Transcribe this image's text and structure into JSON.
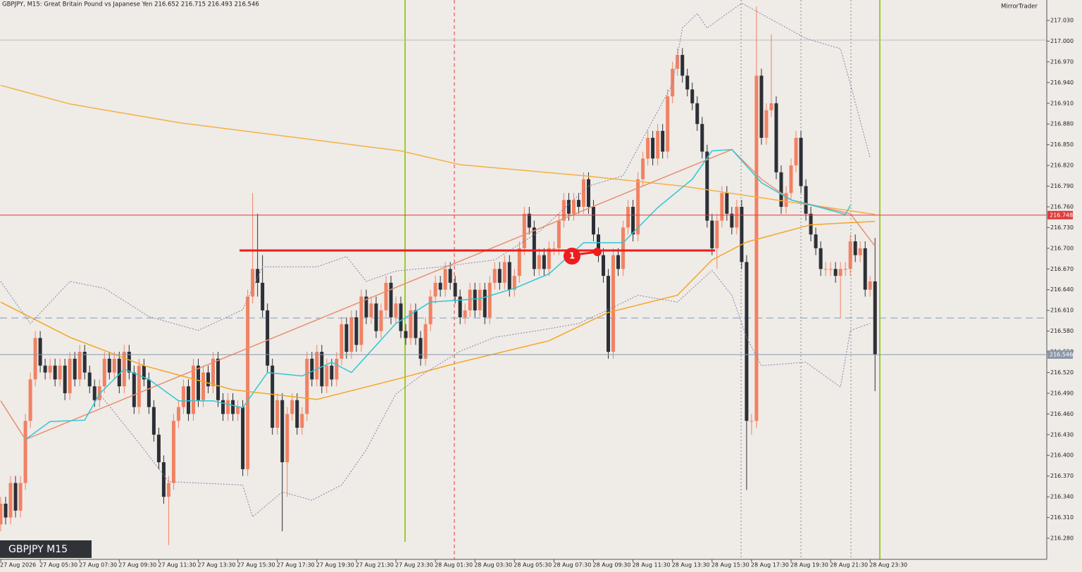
{
  "chart_data": {
    "type": "candlestick",
    "title": "GBPJPY, M15:  Great Britain Pound vs Japanese Yen  216.652 216.715 216.493 216.546",
    "brand": "MirrorTrader",
    "symbol_label": "GBPJPY M15",
    "bull_color": "#f08263",
    "bear_color": "#2b2f36",
    "ylim": [
      216.2494,
      217.0596
    ],
    "yticks": [
      {
        "value": 217.03,
        "label": "217.030"
      },
      {
        "value": 217.0,
        "label": "217.000"
      },
      {
        "value": 216.97,
        "label": "216.970"
      },
      {
        "value": 216.94,
        "label": "216.940"
      },
      {
        "value": 216.91,
        "label": "216.910"
      },
      {
        "value": 216.88,
        "label": "216.880"
      },
      {
        "value": 216.85,
        "label": "216.850"
      },
      {
        "value": 216.82,
        "label": "216.820"
      },
      {
        "value": 216.79,
        "label": "216.790"
      },
      {
        "value": 216.76,
        "label": "216.760"
      },
      {
        "value": 216.73,
        "label": "216.730"
      },
      {
        "value": 216.7,
        "label": "216.700"
      },
      {
        "value": 216.67,
        "label": "216.670"
      },
      {
        "value": 216.64,
        "label": "216.640"
      },
      {
        "value": 216.61,
        "label": "216.610"
      },
      {
        "value": 216.58,
        "label": "216.580"
      },
      {
        "value": 216.55,
        "label": "216.550"
      },
      {
        "value": 216.52,
        "label": "216.520"
      },
      {
        "value": 216.49,
        "label": "216.490"
      },
      {
        "value": 216.46,
        "label": "216.460"
      },
      {
        "value": 216.43,
        "label": "216.430"
      },
      {
        "value": 216.4,
        "label": "216.400"
      },
      {
        "value": 216.37,
        "label": "216.370"
      },
      {
        "value": 216.34,
        "label": "216.340"
      },
      {
        "value": 216.31,
        "label": "216.310"
      },
      {
        "value": 216.28,
        "label": "216.280"
      }
    ],
    "hlines": [
      {
        "value": 216.748,
        "color": "#e03a3a",
        "label_color": "#e03a3a"
      },
      {
        "value": 216.546,
        "color": "#8a97a8",
        "label_color": "#8a97a8"
      }
    ],
    "categories": [
      "27 Aug 2026",
      null,
      null,
      null,
      null,
      null,
      null,
      null,
      "27 Aug 05:30",
      null,
      null,
      null,
      null,
      null,
      null,
      null,
      "27 Aug 07:30",
      null,
      null,
      null,
      null,
      null,
      null,
      null,
      "27 Aug 09:30",
      null,
      null,
      null,
      null,
      null,
      null,
      null,
      "27 Aug 11:30",
      null,
      null,
      null,
      null,
      null,
      null,
      null,
      "27 Aug 13:30",
      null,
      null,
      null,
      null,
      null,
      null,
      null,
      "27 Aug 15:30",
      null,
      null,
      null,
      null,
      null,
      null,
      null,
      "27 Aug 17:30",
      null,
      null,
      null,
      null,
      null,
      null,
      null,
      "27 Aug 19:30",
      null,
      null,
      null,
      null,
      null,
      null,
      null,
      "27 Aug 21:30",
      null,
      null,
      null,
      null,
      null,
      null,
      null,
      "27 Aug 23:30",
      null,
      null,
      null,
      null,
      null,
      null,
      null,
      "28 Aug 01:30",
      null,
      null,
      null,
      null,
      null,
      null,
      null,
      "28 Aug 03:30",
      null,
      null,
      null,
      null,
      null,
      null,
      null,
      "28 Aug 05:30",
      null,
      null,
      null,
      null,
      null,
      null,
      null,
      "28 Aug 07:30",
      null,
      null,
      null,
      null,
      null,
      null,
      null,
      "28 Aug 09:30",
      null,
      null,
      null,
      null,
      null,
      null,
      null,
      "28 Aug 11:30",
      null,
      null,
      null,
      null,
      null,
      null,
      null,
      "28 Aug 13:30",
      null,
      null,
      null,
      null,
      null,
      null,
      null,
      "28 Aug 15:30",
      null,
      null,
      null,
      null,
      null,
      null,
      null,
      "28 Aug 17:30",
      null,
      null,
      null,
      null,
      null,
      null,
      null,
      "28 Aug 19:30",
      null,
      null,
      null,
      null,
      null,
      null,
      null,
      "28 Aug 21:30",
      null,
      null,
      null,
      null,
      null,
      null,
      null,
      "28 Aug 23:30",
      null
    ],
    "open": [
      216.3,
      216.33,
      216.31,
      216.36,
      216.32,
      216.36,
      216.45,
      216.51,
      216.57,
      216.53,
      216.52,
      216.53,
      216.51,
      216.53,
      216.49,
      216.54,
      216.51,
      216.55,
      216.52,
      216.5,
      216.48,
      216.5,
      216.54,
      216.52,
      216.54,
      216.5,
      216.55,
      216.52,
      216.47,
      216.53,
      216.51,
      216.47,
      216.43,
      216.39,
      216.34,
      216.36,
      216.45,
      216.47,
      216.5,
      216.46,
      216.53,
      216.48,
      216.52,
      216.5,
      216.54,
      216.48,
      216.46,
      216.48,
      216.46,
      216.47,
      216.38,
      216.63,
      216.67,
      216.65,
      216.61,
      216.53,
      216.44,
      216.48,
      216.39,
      216.46,
      216.48,
      216.44,
      216.46,
      216.54,
      216.51,
      216.55,
      216.5,
      216.53,
      216.51,
      216.54,
      216.59,
      216.55,
      216.6,
      216.56,
      216.63,
      216.6,
      216.62,
      216.58,
      216.61,
      216.65,
      216.6,
      216.62,
      216.58,
      216.57,
      216.61,
      216.57,
      216.54,
      216.59,
      216.63,
      216.65,
      216.64,
      216.67,
      216.65,
      216.63,
      216.6,
      216.61,
      216.64,
      216.61,
      216.64,
      216.6,
      216.65,
      216.67,
      216.65,
      216.68,
      216.64,
      216.66,
      216.7,
      216.75,
      216.73,
      216.67,
      216.69,
      216.67,
      216.7,
      216.7,
      216.74,
      216.77,
      216.75,
      216.77,
      216.76,
      216.8,
      216.76,
      216.72,
      216.69,
      216.66,
      216.55,
      216.69,
      216.67,
      216.73,
      216.76,
      216.72,
      216.8,
      216.83,
      216.86,
      216.83,
      216.87,
      216.84,
      216.92,
      216.96,
      216.98,
      216.95,
      216.93,
      216.91,
      216.88,
      216.84,
      216.74,
      216.7,
      216.74,
      216.78,
      216.75,
      216.73,
      216.76,
      216.68,
      216.45,
      216.45,
      216.95,
      216.86,
      216.9,
      216.91,
      216.81,
      216.76,
      216.78,
      216.82,
      216.86,
      216.79,
      216.75,
      216.72,
      216.7,
      216.67,
      216.67,
      216.67,
      216.66,
      216.67,
      216.67,
      216.71,
      216.69,
      216.7,
      216.64,
      216.652
    ],
    "high": [
      216.34,
      216.34,
      216.37,
      216.37,
      216.37,
      216.46,
      216.52,
      216.58,
      216.58,
      216.54,
      216.54,
      216.54,
      216.54,
      216.54,
      216.55,
      216.55,
      216.56,
      216.56,
      216.53,
      216.51,
      216.51,
      216.55,
      216.55,
      216.55,
      216.55,
      216.56,
      216.56,
      216.53,
      216.54,
      216.54,
      216.52,
      216.48,
      216.44,
      216.4,
      216.37,
      216.46,
      216.48,
      216.51,
      216.51,
      216.54,
      216.54,
      216.53,
      216.53,
      216.55,
      216.55,
      216.49,
      216.49,
      216.49,
      216.48,
      216.48,
      216.64,
      216.78,
      216.75,
      216.69,
      216.62,
      216.54,
      216.49,
      216.49,
      216.47,
      216.49,
      216.49,
      216.47,
      216.55,
      216.55,
      216.56,
      216.56,
      216.54,
      216.54,
      216.55,
      216.6,
      216.6,
      216.61,
      216.61,
      216.64,
      216.64,
      216.63,
      216.63,
      216.62,
      216.66,
      216.66,
      216.63,
      216.63,
      216.59,
      216.62,
      216.62,
      216.58,
      216.6,
      216.64,
      216.66,
      216.66,
      216.68,
      216.68,
      216.66,
      216.64,
      216.62,
      216.65,
      216.65,
      216.65,
      216.65,
      216.66,
      216.68,
      216.68,
      216.69,
      216.69,
      216.67,
      216.71,
      216.76,
      216.76,
      216.74,
      216.7,
      216.7,
      216.71,
      216.71,
      216.75,
      216.78,
      216.78,
      216.78,
      216.78,
      216.81,
      216.81,
      216.77,
      216.73,
      216.7,
      216.67,
      216.7,
      216.7,
      216.74,
      216.77,
      216.77,
      216.81,
      216.84,
      216.87,
      216.87,
      216.88,
      216.88,
      216.93,
      216.97,
      216.99,
      216.99,
      216.96,
      216.94,
      216.92,
      216.89,
      216.85,
      216.75,
      216.75,
      216.79,
      216.79,
      216.76,
      216.77,
      216.77,
      216.69,
      216.46,
      217.05,
      216.96,
      216.91,
      217.01,
      216.92,
      216.82,
      216.79,
      216.83,
      216.87,
      216.87,
      216.8,
      216.76,
      216.73,
      216.71,
      216.68,
      216.68,
      216.68,
      216.68,
      216.68,
      216.72,
      216.72,
      216.71,
      216.71,
      216.66,
      216.715
    ],
    "low": [
      216.29,
      216.3,
      216.3,
      216.31,
      216.31,
      216.35,
      216.44,
      216.5,
      216.52,
      216.51,
      216.51,
      216.5,
      216.5,
      216.48,
      216.48,
      216.5,
      216.5,
      216.51,
      216.49,
      216.47,
      216.47,
      216.49,
      216.51,
      216.51,
      216.49,
      216.49,
      216.51,
      216.46,
      216.46,
      216.5,
      216.46,
      216.42,
      216.38,
      216.33,
      216.27,
      216.35,
      216.44,
      216.46,
      216.45,
      216.45,
      216.47,
      216.47,
      216.49,
      216.49,
      216.47,
      216.45,
      216.45,
      216.45,
      216.45,
      216.37,
      216.37,
      216.62,
      216.63,
      216.6,
      216.52,
      216.43,
      216.43,
      216.29,
      216.34,
      216.45,
      216.43,
      216.43,
      216.45,
      216.5,
      216.5,
      216.49,
      216.49,
      216.5,
      216.5,
      216.53,
      216.54,
      216.54,
      216.55,
      216.55,
      216.59,
      216.59,
      216.57,
      216.57,
      216.6,
      216.59,
      216.59,
      216.57,
      216.56,
      216.56,
      216.56,
      216.53,
      216.53,
      216.58,
      216.62,
      216.63,
      216.63,
      216.64,
      216.62,
      216.59,
      216.59,
      216.6,
      216.6,
      216.6,
      216.59,
      216.59,
      216.64,
      216.64,
      216.64,
      216.63,
      216.63,
      216.65,
      216.69,
      216.72,
      216.66,
      216.66,
      216.66,
      216.66,
      216.69,
      216.69,
      216.73,
      216.74,
      216.74,
      216.75,
      216.75,
      216.75,
      216.71,
      216.68,
      216.65,
      216.54,
      216.54,
      216.66,
      216.66,
      216.72,
      216.71,
      216.71,
      216.79,
      216.82,
      216.82,
      216.82,
      216.83,
      216.83,
      216.91,
      216.95,
      216.94,
      216.92,
      216.9,
      216.87,
      216.83,
      216.73,
      216.69,
      216.67,
      216.73,
      216.74,
      216.72,
      216.72,
      216.67,
      216.35,
      216.43,
      216.44,
      216.85,
      216.85,
      216.89,
      216.8,
      216.75,
      216.75,
      216.77,
      216.81,
      216.78,
      216.74,
      216.71,
      216.69,
      216.66,
      216.66,
      216.66,
      216.65,
      216.6,
      216.66,
      216.66,
      216.68,
      216.68,
      216.63,
      216.63,
      216.493
    ],
    "close": [
      216.33,
      216.31,
      216.36,
      216.32,
      216.36,
      216.45,
      216.51,
      216.57,
      216.53,
      216.52,
      216.53,
      216.51,
      216.53,
      216.49,
      216.54,
      216.51,
      216.55,
      216.52,
      216.5,
      216.48,
      216.5,
      216.54,
      216.52,
      216.54,
      216.5,
      216.55,
      216.52,
      216.47,
      216.53,
      216.51,
      216.47,
      216.43,
      216.39,
      216.34,
      216.36,
      216.45,
      216.47,
      216.5,
      216.46,
      216.53,
      216.48,
      216.52,
      216.5,
      216.54,
      216.48,
      216.46,
      216.48,
      216.46,
      216.47,
      216.38,
      216.63,
      216.67,
      216.65,
      216.61,
      216.53,
      216.44,
      216.48,
      216.39,
      216.46,
      216.48,
      216.44,
      216.46,
      216.54,
      216.51,
      216.55,
      216.5,
      216.53,
      216.51,
      216.54,
      216.59,
      216.55,
      216.6,
      216.56,
      216.63,
      216.6,
      216.62,
      216.58,
      216.61,
      216.65,
      216.6,
      216.62,
      216.58,
      216.57,
      216.61,
      216.57,
      216.54,
      216.59,
      216.63,
      216.65,
      216.64,
      216.67,
      216.65,
      216.63,
      216.6,
      216.61,
      216.64,
      216.61,
      216.64,
      216.6,
      216.65,
      216.67,
      216.65,
      216.68,
      216.64,
      216.66,
      216.7,
      216.75,
      216.73,
      216.67,
      216.69,
      216.67,
      216.7,
      216.7,
      216.74,
      216.77,
      216.75,
      216.77,
      216.76,
      216.8,
      216.76,
      216.72,
      216.69,
      216.66,
      216.55,
      216.69,
      216.67,
      216.73,
      216.76,
      216.72,
      216.8,
      216.83,
      216.86,
      216.83,
      216.87,
      216.84,
      216.92,
      216.96,
      216.98,
      216.95,
      216.93,
      216.91,
      216.88,
      216.84,
      216.74,
      216.7,
      216.74,
      216.78,
      216.75,
      216.73,
      216.76,
      216.68,
      216.45,
      216.45,
      216.95,
      216.86,
      216.9,
      216.91,
      216.81,
      216.76,
      216.78,
      216.82,
      216.86,
      216.79,
      216.75,
      216.72,
      216.7,
      216.67,
      216.67,
      216.67,
      216.66,
      216.67,
      216.67,
      216.71,
      216.69,
      216.7,
      216.64,
      216.652,
      216.546
    ],
    "indicators": [
      {
        "color": "#f5b041",
        "style": "solid",
        "x": [
          0,
          14,
          36,
          81,
          93,
          118,
          138,
          157,
          177
        ],
        "values": [
          216.936,
          216.909,
          216.882,
          216.841,
          216.821,
          216.805,
          216.79,
          216.77,
          216.749
        ]
      },
      {
        "color": "#f5a623",
        "style": "solid",
        "x": [
          0,
          14,
          29,
          47,
          64,
          80,
          93,
          111,
          123,
          137,
          144,
          151,
          164,
          177
        ],
        "values": [
          216.622,
          216.571,
          216.53,
          216.495,
          216.481,
          216.51,
          216.535,
          216.566,
          216.607,
          216.632,
          216.683,
          216.709,
          216.734,
          216.739
        ]
      },
      {
        "color": "#e8906f",
        "style": "solid",
        "x": [
          0,
          5,
          148,
          154,
          160,
          166,
          172,
          177
        ],
        "values": [
          216.479,
          216.423,
          216.843,
          216.8,
          216.77,
          216.76,
          216.75,
          216.703
        ]
      },
      {
        "color": "#2ec7d6",
        "style": "solid",
        "x": [
          5,
          10,
          17,
          20,
          25,
          30,
          36,
          43,
          49,
          54,
          61,
          67,
          71,
          80,
          87,
          97,
          104,
          111,
          118,
          126,
          133,
          140,
          144,
          148,
          154,
          160,
          166,
          171,
          172
        ],
        "values": [
          216.423,
          216.449,
          216.451,
          216.489,
          216.525,
          216.51,
          216.479,
          216.479,
          216.469,
          216.52,
          216.515,
          216.535,
          216.52,
          216.591,
          216.622,
          216.627,
          216.642,
          216.663,
          216.708,
          216.708,
          216.759,
          216.8,
          216.841,
          216.843,
          216.795,
          216.77,
          216.759,
          216.749,
          216.762
        ]
      },
      {
        "color": "#8a82a8",
        "style": "dotted",
        "x": [
          0,
          6,
          14,
          21,
          30,
          40,
          49,
          53,
          64,
          70,
          74,
          80,
          89,
          100,
          109,
          119,
          126,
          131,
          136,
          138,
          141,
          143,
          150,
          163,
          170,
          172,
          176
        ],
        "values": [
          216.652,
          216.591,
          216.652,
          216.642,
          216.601,
          216.581,
          216.611,
          216.673,
          216.673,
          216.688,
          216.652,
          216.667,
          216.673,
          216.683,
          216.724,
          216.79,
          216.805,
          216.872,
          216.938,
          217.019,
          217.04,
          217.019,
          217.055,
          217.004,
          216.989,
          216.938,
          216.831
        ]
      },
      {
        "color": "#8a82a8",
        "style": "dotted",
        "x": [
          20,
          28,
          34,
          49,
          51,
          57,
          63,
          69,
          74,
          80,
          86,
          93,
          100,
          109,
          117,
          123,
          129,
          137,
          144,
          148,
          151,
          154,
          163,
          170,
          172,
          176
        ],
        "values": [
          216.489,
          216.418,
          216.362,
          216.357,
          216.311,
          216.347,
          216.335,
          216.357,
          216.408,
          216.489,
          216.52,
          216.551,
          216.571,
          216.581,
          216.591,
          216.611,
          216.632,
          216.622,
          216.668,
          216.632,
          216.571,
          216.53,
          216.535,
          216.499,
          216.581,
          216.591
        ]
      }
    ],
    "trend_marker": "1"
  }
}
